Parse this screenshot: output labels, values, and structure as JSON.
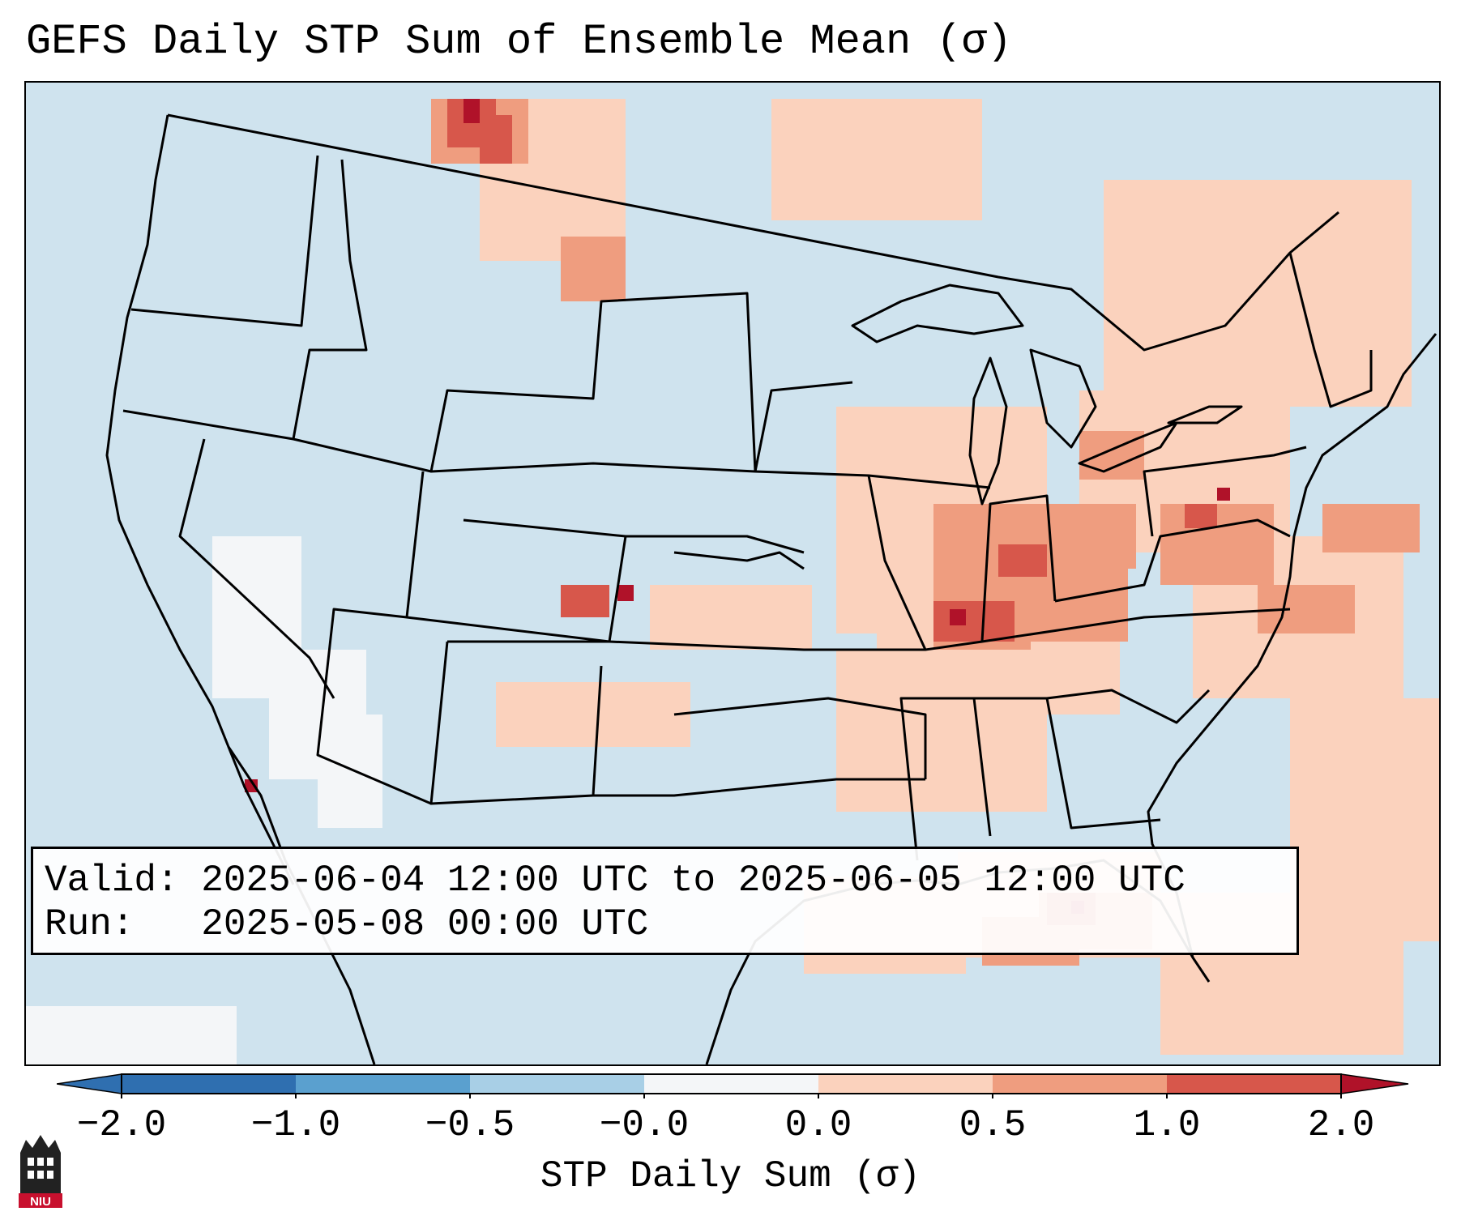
{
  "title": "GEFS Daily STP Sum of Ensemble Mean (σ)",
  "info": {
    "valid_line": "Valid: 2025-06-04 12:00 UTC to 2025-06-05 12:00 UTC",
    "run_line": "Run:   2025-05-08 00:00 UTC"
  },
  "colorbar": {
    "label": "STP Daily Sum (σ)",
    "ticks": [
      "−2.0",
      "−1.0",
      "−0.5",
      "−0.0",
      "0.0",
      "0.5",
      "1.0",
      "2.0"
    ],
    "colors": [
      "#2f6fb0",
      "#5aa0cf",
      "#a8cfe6",
      "#f4f6f8",
      "#fbd2bd",
      "#ef9d7f",
      "#d7574b",
      "#b01229"
    ]
  },
  "map": {
    "background_color": "#cfe3ee",
    "region": "CONUS"
  },
  "logo": {
    "text": "NIU"
  }
}
